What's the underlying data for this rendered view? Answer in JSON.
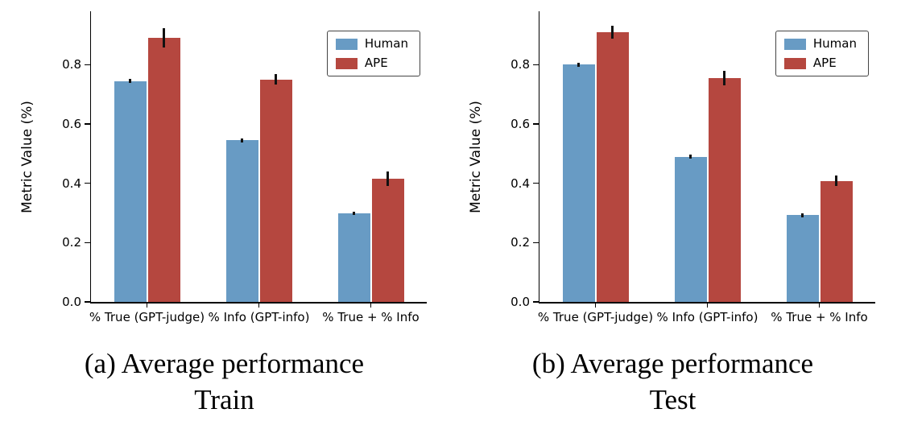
{
  "figure": {
    "background": "#ffffff"
  },
  "chart_data": [
    {
      "type": "bar",
      "caption_line1": "(a) Average performance",
      "caption_line2": "Train",
      "ylabel": "Metric Value (%)",
      "categories": [
        "% True (GPT-judge)",
        "% Info (GPT-info)",
        "% True + % Info"
      ],
      "series": [
        {
          "name": "Human",
          "color": "#689bc4",
          "values": [
            0.745,
            0.545,
            0.298
          ],
          "errors": [
            0.006,
            0.007,
            0.006
          ]
        },
        {
          "name": "APE",
          "color": "#b5473f",
          "values": [
            0.89,
            0.75,
            0.415
          ],
          "errors": [
            0.033,
            0.018,
            0.024
          ]
        }
      ],
      "ylim": [
        0.0,
        0.98
      ],
      "yticks": [
        0.0,
        0.2,
        0.4,
        0.6,
        0.8
      ],
      "legend_position": "upper right",
      "grid": false
    },
    {
      "type": "bar",
      "caption_line1": "(b) Average performance",
      "caption_line2": "Test",
      "ylabel": "Metric Value (%)",
      "categories": [
        "% True (GPT-judge)",
        "% Info (GPT-info)",
        "% True + % Info"
      ],
      "series": [
        {
          "name": "Human",
          "color": "#689bc4",
          "values": [
            0.8,
            0.49,
            0.293
          ],
          "errors": [
            0.007,
            0.008,
            0.007
          ]
        },
        {
          "name": "APE",
          "color": "#b5473f",
          "values": [
            0.91,
            0.755,
            0.408
          ],
          "errors": [
            0.022,
            0.024,
            0.018
          ]
        }
      ],
      "ylim": [
        0.0,
        0.98
      ],
      "yticks": [
        0.0,
        0.2,
        0.4,
        0.6,
        0.8
      ],
      "legend_position": "upper right",
      "grid": false
    }
  ]
}
